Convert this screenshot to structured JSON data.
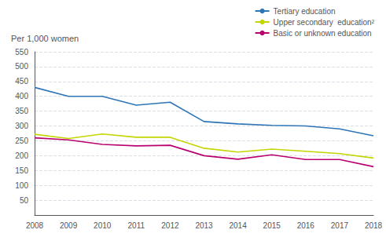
{
  "chart_data": {
    "type": "line",
    "ylabel": "Per 1,000 women",
    "x": [
      2008,
      2009,
      2010,
      2011,
      2012,
      2013,
      2014,
      2015,
      2016,
      2017,
      2018
    ],
    "series": [
      {
        "name": "Tertiary education",
        "color": "#2e75b6",
        "values": [
          430,
          400,
          400,
          370,
          380,
          315,
          307,
          302,
          300,
          290,
          267
        ]
      },
      {
        "name": "Upper secondary  education²",
        "color": "#c4d600",
        "values": [
          272,
          258,
          273,
          262,
          262,
          225,
          212,
          222,
          215,
          207,
          192
        ]
      },
      {
        "name": "Basic or unknown education",
        "color": "#b8006e",
        "values": [
          260,
          253,
          238,
          233,
          235,
          200,
          188,
          203,
          187,
          187,
          163
        ]
      }
    ],
    "xlim": [
      2008,
      2018
    ],
    "xticks": [
      2008,
      2009,
      2010,
      2011,
      2012,
      2013,
      2014,
      2015,
      2016,
      2017,
      2018
    ],
    "ylim": [
      0,
      550
    ],
    "yticks": [
      50,
      100,
      150,
      200,
      250,
      300,
      350,
      400,
      450,
      500,
      550
    ],
    "grid": true,
    "legend": "upper right"
  }
}
